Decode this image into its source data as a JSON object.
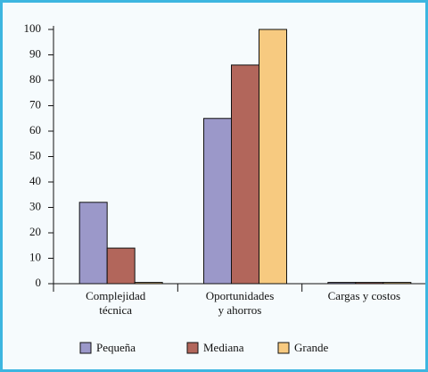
{
  "chart_data": {
    "type": "bar",
    "categories": [
      "Complejidad\ntécnica",
      "Oportunidades\ny ahorros",
      "Cargas y costos"
    ],
    "series": [
      {
        "name": "Pequeña",
        "color": "#9b98c9",
        "values": [
          32,
          65,
          0.5
        ]
      },
      {
        "name": "Mediana",
        "color": "#b2665b",
        "values": [
          14,
          86,
          0.5
        ]
      },
      {
        "name": "Grande",
        "color": "#f7ca80",
        "values": [
          0.5,
          100,
          0.5
        ]
      }
    ],
    "ylim": [
      0,
      100
    ],
    "yticks": [
      0,
      10,
      20,
      30,
      40,
      50,
      60,
      70,
      80,
      90,
      100
    ],
    "grid": false,
    "legend": "bottom"
  }
}
